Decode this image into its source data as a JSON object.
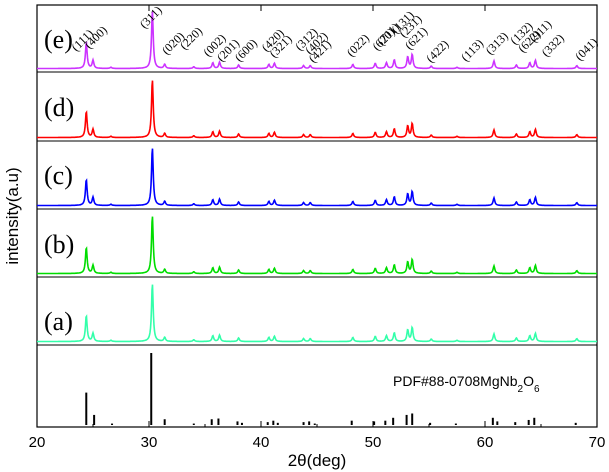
{
  "chart_data": {
    "type": "line",
    "xlabel": "2θ(deg)",
    "ylabel": "intensity(a.u)",
    "xlim": [
      20,
      70
    ],
    "xticks": [
      20,
      30,
      40,
      50,
      60,
      70
    ],
    "peaks": [
      {
        "pos": 24.4,
        "rel": 0.45
      },
      {
        "pos": 25.0,
        "rel": 0.14
      },
      {
        "pos": 26.6,
        "rel": 0.02
      },
      {
        "pos": 30.3,
        "rel": 1.0
      },
      {
        "pos": 31.4,
        "rel": 0.07
      },
      {
        "pos": 34.0,
        "rel": 0.03
      },
      {
        "pos": 35.7,
        "rel": 0.1
      },
      {
        "pos": 36.3,
        "rel": 0.11
      },
      {
        "pos": 38.0,
        "rel": 0.06
      },
      {
        "pos": 40.7,
        "rel": 0.07
      },
      {
        "pos": 41.2,
        "rel": 0.09
      },
      {
        "pos": 43.8,
        "rel": 0.05
      },
      {
        "pos": 44.4,
        "rel": 0.05
      },
      {
        "pos": 48.2,
        "rel": 0.07
      },
      {
        "pos": 50.2,
        "rel": 0.09
      },
      {
        "pos": 51.2,
        "rel": 0.1
      },
      {
        "pos": 51.9,
        "rel": 0.15
      },
      {
        "pos": 53.1,
        "rel": 0.2
      },
      {
        "pos": 53.5,
        "rel": 0.24
      },
      {
        "pos": 55.2,
        "rel": 0.04
      },
      {
        "pos": 57.5,
        "rel": 0.02
      },
      {
        "pos": 60.8,
        "rel": 0.13
      },
      {
        "pos": 62.8,
        "rel": 0.06
      },
      {
        "pos": 64.0,
        "rel": 0.1
      },
      {
        "pos": 64.5,
        "rel": 0.14
      },
      {
        "pos": 68.2,
        "rel": 0.05
      }
    ],
    "series": [
      {
        "name": "(e)",
        "color": "#cc33ff"
      },
      {
        "name": "(d)",
        "color": "#ff0000"
      },
      {
        "name": "(c)",
        "color": "#0000ff"
      },
      {
        "name": "(b)",
        "color": "#00dd00"
      },
      {
        "name": "(a)",
        "color": "#33ffaa"
      }
    ],
    "reference": {
      "label": "PDF#88-0708MgNb",
      "formula_tail": [
        {
          "t": "2",
          "sub": true
        },
        {
          "t": "O",
          "sub": false
        },
        {
          "t": "6",
          "sub": true
        }
      ],
      "lines": [
        {
          "pos": 24.4,
          "rel": 0.45
        },
        {
          "pos": 25.1,
          "rel": 0.14
        },
        {
          "pos": 26.7,
          "rel": 0.02
        },
        {
          "pos": 30.2,
          "rel": 1.0
        },
        {
          "pos": 31.4,
          "rel": 0.08
        },
        {
          "pos": 34.0,
          "rel": 0.02
        },
        {
          "pos": 35.6,
          "rel": 0.08
        },
        {
          "pos": 36.2,
          "rel": 0.09
        },
        {
          "pos": 37.9,
          "rel": 0.05
        },
        {
          "pos": 38.3,
          "rel": 0.03
        },
        {
          "pos": 40.6,
          "rel": 0.04
        },
        {
          "pos": 41.1,
          "rel": 0.06
        },
        {
          "pos": 41.5,
          "rel": 0.03
        },
        {
          "pos": 43.8,
          "rel": 0.04
        },
        {
          "pos": 44.3,
          "rel": 0.05
        },
        {
          "pos": 44.8,
          "rel": 0.02
        },
        {
          "pos": 48.1,
          "rel": 0.06
        },
        {
          "pos": 50.1,
          "rel": 0.05
        },
        {
          "pos": 51.1,
          "rel": 0.06
        },
        {
          "pos": 51.8,
          "rel": 0.1
        },
        {
          "pos": 53.0,
          "rel": 0.14
        },
        {
          "pos": 53.5,
          "rel": 0.16
        },
        {
          "pos": 55.1,
          "rel": 0.03
        },
        {
          "pos": 57.4,
          "rel": 0.02
        },
        {
          "pos": 60.7,
          "rel": 0.1
        },
        {
          "pos": 61.1,
          "rel": 0.05
        },
        {
          "pos": 62.7,
          "rel": 0.04
        },
        {
          "pos": 63.9,
          "rel": 0.07
        },
        {
          "pos": 64.4,
          "rel": 0.1
        },
        {
          "pos": 68.1,
          "rel": 0.03
        }
      ]
    },
    "annotations": [
      {
        "text": "(111)",
        "pos": 24.3
      },
      {
        "text": "(400)",
        "pos": 25.5
      },
      {
        "text": "(311)",
        "pos": 30.4
      },
      {
        "text": "(020)",
        "pos": 32.4
      },
      {
        "text": "(220)",
        "pos": 34.0
      },
      {
        "text": "(002)",
        "pos": 36.1
      },
      {
        "text": "(201)",
        "pos": 37.3
      },
      {
        "text": "(600)",
        "pos": 38.9
      },
      {
        "text": "(420)",
        "pos": 41.3
      },
      {
        "text": "(321)",
        "pos": 42.0
      },
      {
        "text": "(312)",
        "pos": 44.3
      },
      {
        "text": "(402)",
        "pos": 45.2
      },
      {
        "text": "(421)",
        "pos": 45.5
      },
      {
        "text": "(022)",
        "pos": 48.9
      },
      {
        "text": "(620)",
        "pos": 51.2
      },
      {
        "text": "(131)",
        "pos": 52.9
      },
      {
        "text": "(711)",
        "pos": 51.6
      },
      {
        "text": "(231)",
        "pos": 53.6
      },
      {
        "text": "(621)",
        "pos": 54.1
      },
      {
        "text": "(422)",
        "pos": 56.0
      },
      {
        "text": "(113)",
        "pos": 59.1
      },
      {
        "text": "(313)",
        "pos": 61.3
      },
      {
        "text": "(132)",
        "pos": 63.5
      },
      {
        "text": "(911)",
        "pos": 65.2
      },
      {
        "text": "(622)",
        "pos": 64.2
      },
      {
        "text": "(332)",
        "pos": 66.3
      },
      {
        "text": "(041)",
        "pos": 69.3
      }
    ]
  }
}
